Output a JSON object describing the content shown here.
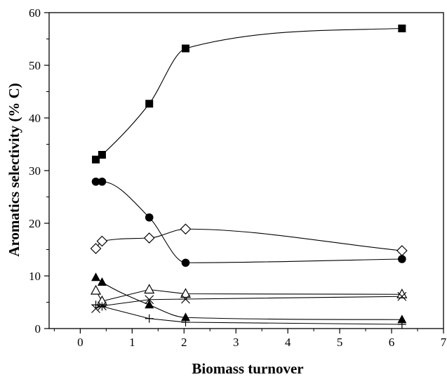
{
  "chart_data": {
    "type": "scatter",
    "title": "",
    "xlabel": "Biomass turnover",
    "ylabel": "Aromatics selectivity (% C)",
    "xlim": [
      -0.6,
      7
    ],
    "ylim": [
      0,
      60
    ],
    "xticks": [
      0,
      1,
      2,
      3,
      4,
      5,
      6,
      7
    ],
    "yticks": [
      0,
      10,
      20,
      30,
      40,
      50,
      60
    ],
    "grid": false,
    "legend": "none",
    "colors": {
      "axis": "#000000",
      "marker": "#000000",
      "background": "#ffffff"
    },
    "series": [
      {
        "marker": "filled-square",
        "line": "smooth",
        "x": [
          0.3,
          0.42,
          1.33,
          2.03,
          6.2
        ],
        "y": [
          32.1,
          33.0,
          42.7,
          53.2,
          57.0
        ]
      },
      {
        "marker": "filled-circle",
        "line": "smooth",
        "x": [
          0.3,
          0.42,
          1.33,
          2.03,
          6.2
        ],
        "y": [
          27.9,
          27.9,
          21.1,
          12.5,
          13.2
        ]
      },
      {
        "marker": "open-diamond",
        "line": "smooth",
        "x": [
          0.3,
          0.42,
          1.33,
          2.03,
          6.2
        ],
        "y": [
          15.2,
          16.6,
          17.2,
          18.9,
          14.8
        ]
      },
      {
        "marker": "filled-triangle",
        "line": "smooth",
        "x": [
          0.3,
          0.42,
          1.33,
          2.03,
          6.2
        ],
        "y": [
          9.7,
          8.8,
          4.5,
          2.1,
          1.7
        ]
      },
      {
        "marker": "open-triangle",
        "line": "straight",
        "x": [
          0.3,
          0.42,
          1.33,
          2.03,
          6.2
        ],
        "y": [
          7.2,
          5.2,
          7.4,
          6.6,
          6.5
        ]
      },
      {
        "marker": "x-cross",
        "line": "straight",
        "x": [
          0.3,
          0.42,
          1.33,
          2.03,
          6.2
        ],
        "y": [
          3.8,
          4.3,
          5.5,
          5.6,
          6.1
        ]
      },
      {
        "marker": "plus",
        "line": "straight",
        "x": [
          0.3,
          0.42,
          1.33,
          2.03,
          6.2
        ],
        "y": [
          4.5,
          4.2,
          1.9,
          1.2,
          0.8
        ]
      }
    ]
  }
}
